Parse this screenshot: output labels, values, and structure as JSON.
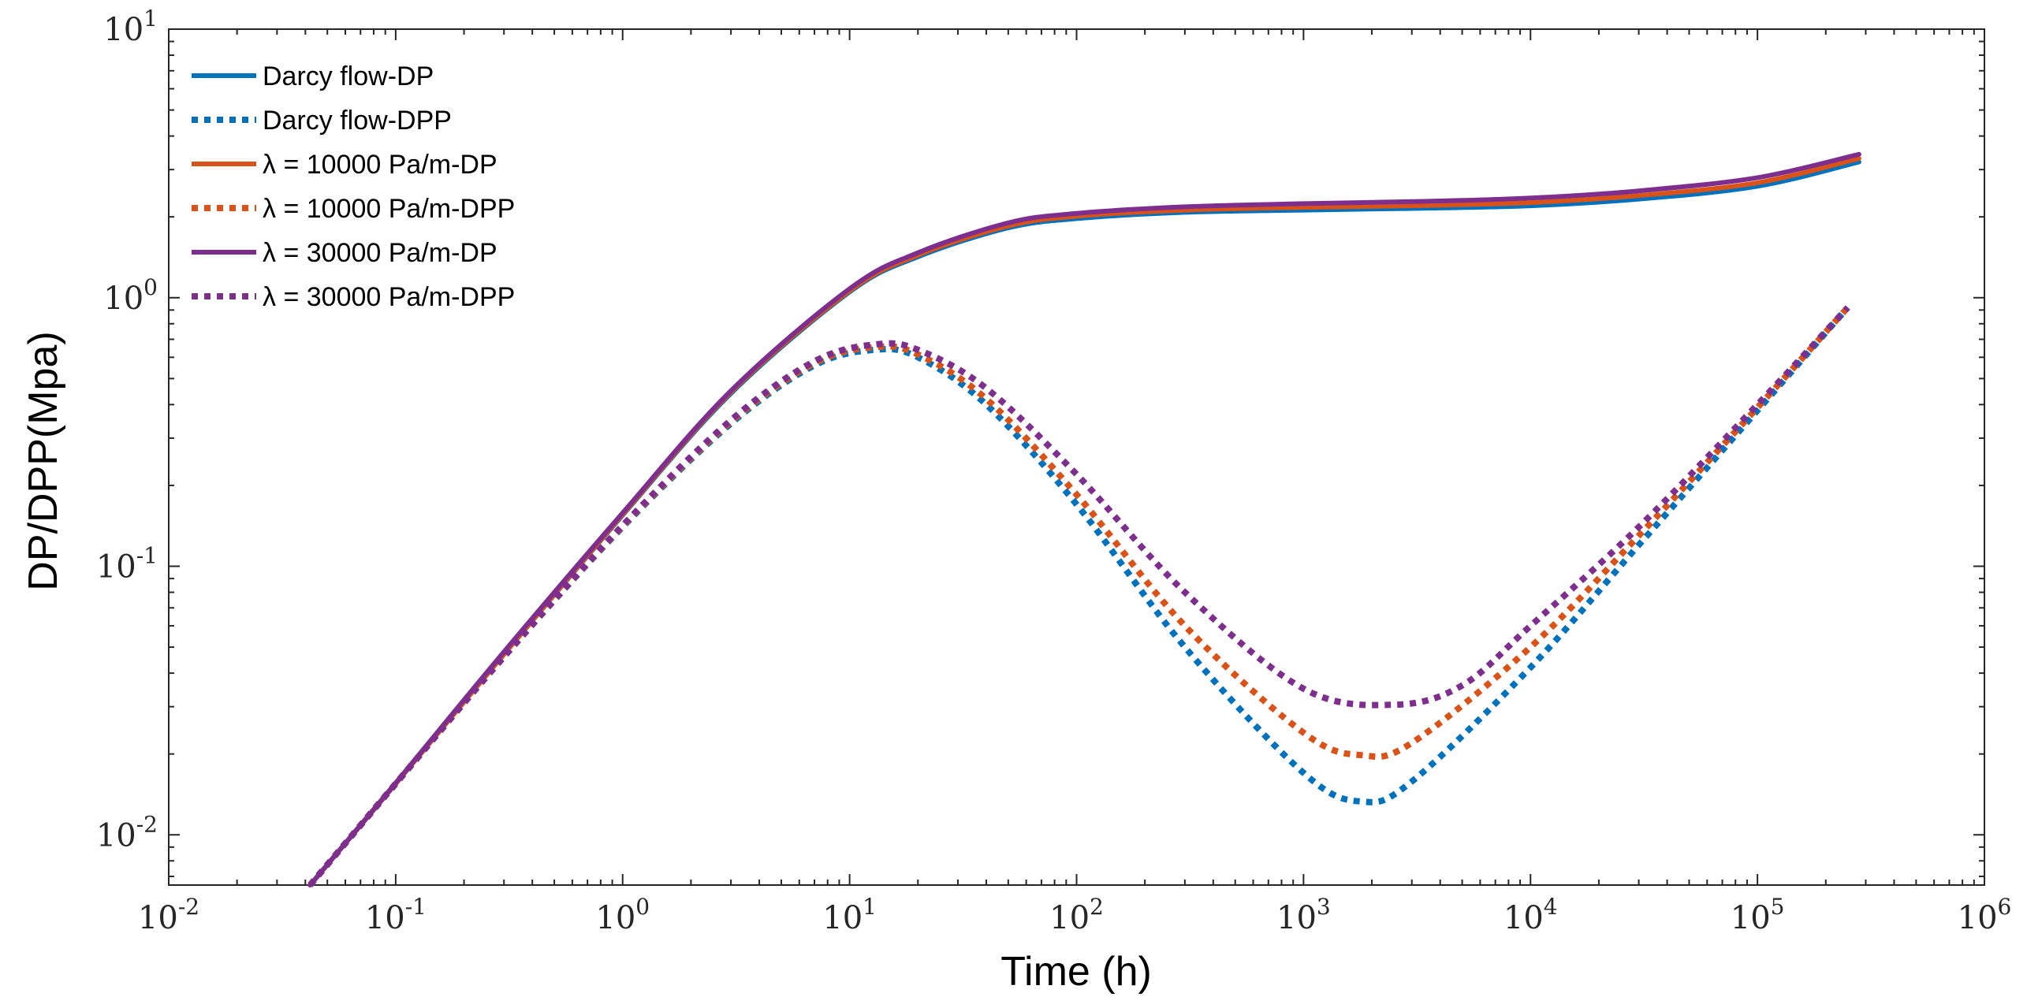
{
  "chart_data": {
    "type": "line",
    "title": "",
    "xlabel": "Time (h)",
    "ylabel": "DP/DPP(Mpa)",
    "xscale": "log",
    "yscale": "log",
    "xlim": [
      0.01,
      1000000
    ],
    "ylim": [
      0.0065,
      10
    ],
    "grid": false,
    "legend_position": "top-left",
    "x_ticks": [
      {
        "base": "10",
        "exp": "-2",
        "value": 0.01
      },
      {
        "base": "10",
        "exp": "-1",
        "value": 0.1
      },
      {
        "base": "10",
        "exp": "0",
        "value": 1
      },
      {
        "base": "10",
        "exp": "1",
        "value": 10
      },
      {
        "base": "10",
        "exp": "2",
        "value": 100
      },
      {
        "base": "10",
        "exp": "3",
        "value": 1000
      },
      {
        "base": "10",
        "exp": "4",
        "value": 10000
      },
      {
        "base": "10",
        "exp": "5",
        "value": 100000
      },
      {
        "base": "10",
        "exp": "6",
        "value": 1000000
      }
    ],
    "y_ticks": [
      {
        "base": "10",
        "exp": "-2",
        "value": 0.01
      },
      {
        "base": "10",
        "exp": "-1",
        "value": 0.1
      },
      {
        "base": "10",
        "exp": "0",
        "value": 1
      },
      {
        "base": "10",
        "exp": "1",
        "value": 10
      }
    ],
    "series": [
      {
        "name": "Darcy flow-DP",
        "color": "#0072BD",
        "style": "solid",
        "x": [
          0.042,
          0.1,
          0.3,
          1,
          3,
          10,
          20,
          50,
          100,
          300,
          1000,
          3000,
          10000,
          30000,
          100000,
          280000
        ],
        "y": [
          0.0065,
          0.0155,
          0.047,
          0.155,
          0.44,
          1.05,
          1.42,
          1.82,
          1.97,
          2.08,
          2.12,
          2.15,
          2.2,
          2.33,
          2.6,
          3.2
        ]
      },
      {
        "name": "Darcy flow-DPP",
        "color": "#0072BD",
        "style": "dotted",
        "x": [
          0.042,
          0.1,
          0.3,
          1,
          3,
          7,
          13,
          20,
          40,
          100,
          300,
          1000,
          1800,
          3000,
          10000,
          30000,
          100000,
          250000
        ],
        "y": [
          0.0065,
          0.0155,
          0.046,
          0.14,
          0.34,
          0.56,
          0.64,
          0.6,
          0.4,
          0.17,
          0.05,
          0.017,
          0.0133,
          0.0158,
          0.042,
          0.12,
          0.38,
          0.92
        ]
      },
      {
        "name": "λ = 10000 Pa/m-DP",
        "color": "#D95319",
        "style": "solid",
        "x": [
          0.042,
          0.1,
          0.3,
          1,
          3,
          10,
          20,
          50,
          100,
          300,
          1000,
          3000,
          10000,
          30000,
          100000,
          280000
        ],
        "y": [
          0.0065,
          0.0155,
          0.047,
          0.156,
          0.445,
          1.06,
          1.44,
          1.85,
          2.01,
          2.12,
          2.17,
          2.2,
          2.26,
          2.4,
          2.68,
          3.3
        ]
      },
      {
        "name": "λ = 10000 Pa/m-DPP",
        "color": "#D95319",
        "style": "dotted",
        "x": [
          0.042,
          0.1,
          0.3,
          1,
          3,
          7,
          13,
          20,
          40,
          100,
          300,
          1000,
          1800,
          3000,
          10000,
          30000,
          100000,
          250000
        ],
        "y": [
          0.0065,
          0.0155,
          0.046,
          0.141,
          0.345,
          0.57,
          0.655,
          0.615,
          0.42,
          0.185,
          0.06,
          0.024,
          0.0198,
          0.022,
          0.05,
          0.13,
          0.39,
          0.92
        ]
      },
      {
        "name": "λ = 30000 Pa/m-DP",
        "color": "#7E2F8E",
        "style": "solid",
        "x": [
          0.042,
          0.1,
          0.3,
          1,
          3,
          10,
          20,
          50,
          100,
          300,
          1000,
          3000,
          10000,
          30000,
          100000,
          280000
        ],
        "y": [
          0.0065,
          0.0156,
          0.048,
          0.158,
          0.45,
          1.08,
          1.47,
          1.9,
          2.06,
          2.18,
          2.24,
          2.28,
          2.35,
          2.5,
          2.8,
          3.42
        ]
      },
      {
        "name": "λ = 30000 Pa/m-DPP",
        "color": "#7E2F8E",
        "style": "dotted",
        "x": [
          0.042,
          0.1,
          0.3,
          1,
          3,
          7,
          13,
          20,
          40,
          100,
          300,
          1000,
          2500,
          5000,
          10000,
          30000,
          100000,
          250000
        ],
        "y": [
          0.0065,
          0.0155,
          0.046,
          0.142,
          0.35,
          0.58,
          0.67,
          0.64,
          0.46,
          0.22,
          0.08,
          0.035,
          0.0305,
          0.036,
          0.06,
          0.14,
          0.4,
          0.92
        ]
      }
    ]
  }
}
